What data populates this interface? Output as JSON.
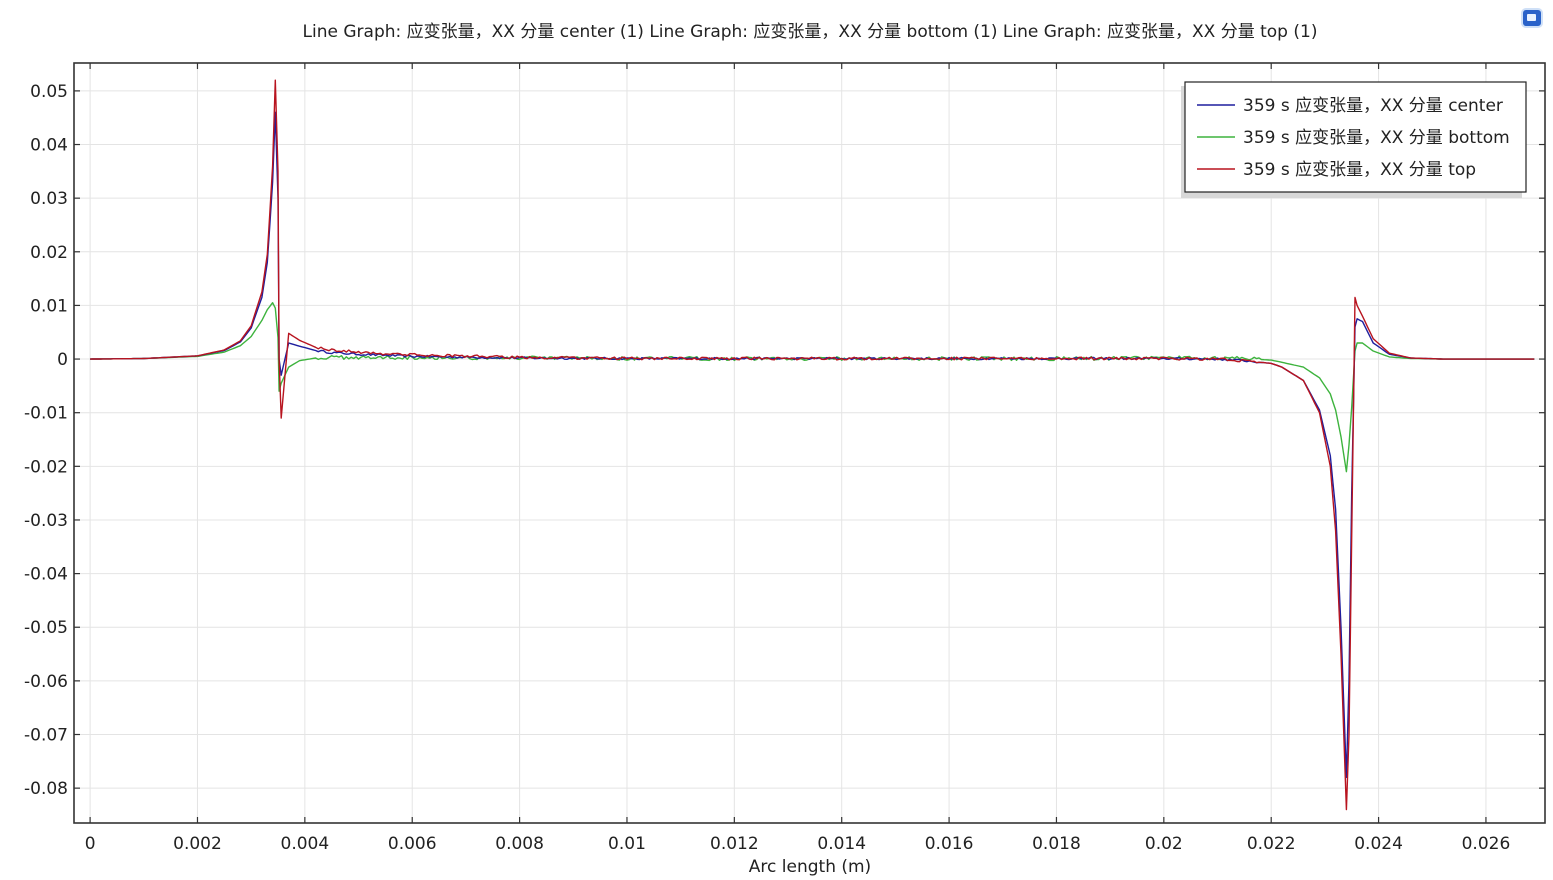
{
  "chart_data": {
    "type": "line",
    "title": "Line Graph: 应变张量，XX 分量 center (1)  Line Graph: 应变张量，XX 分量 bottom (1)  Line Graph: 应变张量，XX 分量 top (1)",
    "xlabel": "Arc length (m)",
    "ylabel": "",
    "xlim": [
      -0.0003,
      0.0271
    ],
    "ylim": [
      -0.0865,
      0.0552
    ],
    "x_ticks": [
      0,
      0.002,
      0.004,
      0.006,
      0.008,
      0.01,
      0.012,
      0.014,
      0.016,
      0.018,
      0.02,
      0.022,
      0.024,
      0.026
    ],
    "x_tick_labels": [
      "0",
      "0.002",
      "0.004",
      "0.006",
      "0.008",
      "0.01",
      "0.012",
      "0.014",
      "0.016",
      "0.018",
      "0.02",
      "0.022",
      "0.024",
      "0.026"
    ],
    "y_ticks": [
      0.05,
      0.04,
      0.03,
      0.02,
      0.01,
      0,
      -0.01,
      -0.02,
      -0.03,
      -0.04,
      -0.05,
      -0.06,
      -0.07,
      -0.08
    ],
    "y_tick_labels": [
      "0.05",
      "0.04",
      "0.03",
      "0.02",
      "0.01",
      "0",
      "-0.01",
      "-0.02",
      "-0.03",
      "-0.04",
      "-0.05",
      "-0.06",
      "-0.07",
      "-0.08"
    ],
    "grid": true,
    "legend_position": "top-right",
    "series": [
      {
        "name": "359 s 应变张量，XX 分量 center",
        "color": "#1f1f9e",
        "x": [
          0,
          0.001,
          0.002,
          0.0025,
          0.0028,
          0.003,
          0.0032,
          0.0033,
          0.0034,
          0.00345,
          0.0035,
          0.00352,
          0.00356,
          0.0037,
          0.0039,
          0.0042,
          0.0045,
          0.005,
          0.0055,
          0.006,
          0.008,
          0.01,
          0.012,
          0.014,
          0.016,
          0.018,
          0.02,
          0.021,
          0.0215,
          0.022,
          0.0222,
          0.0226,
          0.0229,
          0.0231,
          0.0232,
          0.0233,
          0.0234,
          0.02345,
          0.0235,
          0.02356,
          0.0236,
          0.0237,
          0.0239,
          0.0242,
          0.0246,
          0.0252,
          0.026,
          0.0269
        ],
        "y": [
          0,
          0.0001,
          0.0006,
          0.0016,
          0.0032,
          0.0058,
          0.0115,
          0.018,
          0.033,
          0.046,
          0.03,
          0.0,
          -0.003,
          0.003,
          0.0024,
          0.0016,
          0.0012,
          0.0009,
          0.0007,
          0.0005,
          0.0002,
          0.0001,
          0.0001,
          0.0001,
          0.0001,
          0.0001,
          0.0001,
          0.0,
          -0.0003,
          -0.0008,
          -0.0015,
          -0.004,
          -0.0095,
          -0.018,
          -0.028,
          -0.05,
          -0.078,
          -0.06,
          -0.025,
          0.006,
          0.0075,
          0.007,
          0.003,
          0.0009,
          0.0002,
          0.0,
          0.0,
          0
        ],
        "noise": 0.0002
      },
      {
        "name": "359 s 应变张量，XX 分量 bottom",
        "color": "#3db33d",
        "x": [
          0,
          0.001,
          0.002,
          0.0025,
          0.0028,
          0.003,
          0.0032,
          0.0033,
          0.0034,
          0.00345,
          0.0035,
          0.00352,
          0.00356,
          0.0037,
          0.0039,
          0.0042,
          0.0045,
          0.005,
          0.0055,
          0.006,
          0.008,
          0.01,
          0.012,
          0.014,
          0.016,
          0.018,
          0.02,
          0.021,
          0.0215,
          0.022,
          0.0222,
          0.0226,
          0.0229,
          0.0231,
          0.0232,
          0.0233,
          0.0234,
          0.02345,
          0.0235,
          0.02356,
          0.0236,
          0.0237,
          0.0239,
          0.0242,
          0.0246,
          0.0252,
          0.026,
          0.0269
        ],
        "y": [
          0,
          0.0001,
          0.0005,
          0.0013,
          0.0025,
          0.0042,
          0.0072,
          0.0092,
          0.0105,
          0.0095,
          0.004,
          -0.006,
          -0.0045,
          -0.0015,
          -0.0003,
          0.0002,
          0.0003,
          0.0003,
          0.0003,
          0.0003,
          0.0002,
          0.0001,
          0.0001,
          0.0001,
          0.0001,
          0.0001,
          0.0002,
          0.0002,
          0.0001,
          -0.0002,
          -0.0006,
          -0.0015,
          -0.0035,
          -0.0065,
          -0.0095,
          -0.0145,
          -0.021,
          -0.016,
          -0.009,
          0.0015,
          0.003,
          0.003,
          0.0015,
          0.0004,
          0.0001,
          0.0,
          0.0,
          0
        ],
        "noise": 0.00035
      },
      {
        "name": "359 s 应变张量，XX 分量 top",
        "color": "#b8141f",
        "x": [
          0,
          0.001,
          0.002,
          0.0025,
          0.0028,
          0.003,
          0.0032,
          0.0033,
          0.0034,
          0.00345,
          0.0035,
          0.00352,
          0.00356,
          0.0037,
          0.0039,
          0.0042,
          0.0045,
          0.005,
          0.0055,
          0.006,
          0.008,
          0.01,
          0.012,
          0.014,
          0.016,
          0.018,
          0.02,
          0.021,
          0.0215,
          0.022,
          0.0222,
          0.0226,
          0.0229,
          0.0231,
          0.0232,
          0.0233,
          0.0234,
          0.02345,
          0.0235,
          0.02356,
          0.0236,
          0.0237,
          0.0239,
          0.0242,
          0.0246,
          0.0252,
          0.026,
          0.0269
        ],
        "y": [
          0,
          0.0001,
          0.0006,
          0.0017,
          0.0034,
          0.0062,
          0.0125,
          0.0195,
          0.036,
          0.052,
          0.035,
          0.0,
          -0.011,
          0.0048,
          0.0035,
          0.0022,
          0.0017,
          0.0013,
          0.001,
          0.0008,
          0.0003,
          0.0001,
          0.0001,
          0.0001,
          0.0001,
          0.0001,
          0.0001,
          0.0,
          -0.0003,
          -0.0008,
          -0.0015,
          -0.004,
          -0.01,
          -0.02,
          -0.032,
          -0.055,
          -0.084,
          -0.07,
          -0.033,
          0.0115,
          0.01,
          0.008,
          0.0038,
          0.0011,
          0.0002,
          0.0,
          0.0,
          0
        ],
        "noise": 0.00025
      }
    ]
  }
}
